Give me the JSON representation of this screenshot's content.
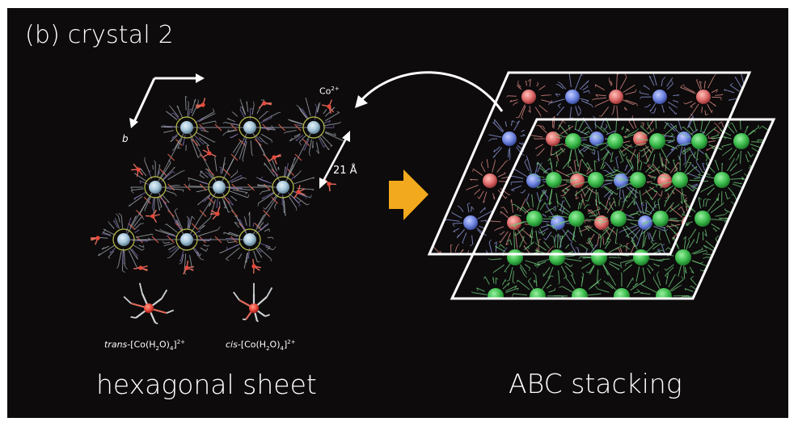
{
  "figure": {
    "panel_label": "(b) crystal 2",
    "left_caption": "hexagonal sheet",
    "right_caption": "ABC stacking"
  },
  "annotations": {
    "axis_b": "b",
    "ion_label": {
      "base": "Co",
      "sup": "2+"
    },
    "spacing": "21 Å"
  },
  "legend": {
    "trans": {
      "prefix": "trans",
      "body": "-[Co(H",
      "sub1": "2",
      "mid": "O)",
      "sub2": "4",
      "end": "]",
      "sup": "2+"
    },
    "cis": {
      "prefix": "cis",
      "body": "-[Co(H",
      "sub1": "2",
      "mid": "O)",
      "sub2": "4",
      "end": "]",
      "sup": "2+"
    }
  },
  "colors": {
    "background": "#0d0b0c",
    "arrow_orange": "#f3a91d",
    "cobalt_red": "#e8493b",
    "center_metal": "#a9c9dc",
    "layer_green": "#3cbc4c",
    "layer_blue": "#6f85e0",
    "layer_red": "#dd6b6b"
  }
}
